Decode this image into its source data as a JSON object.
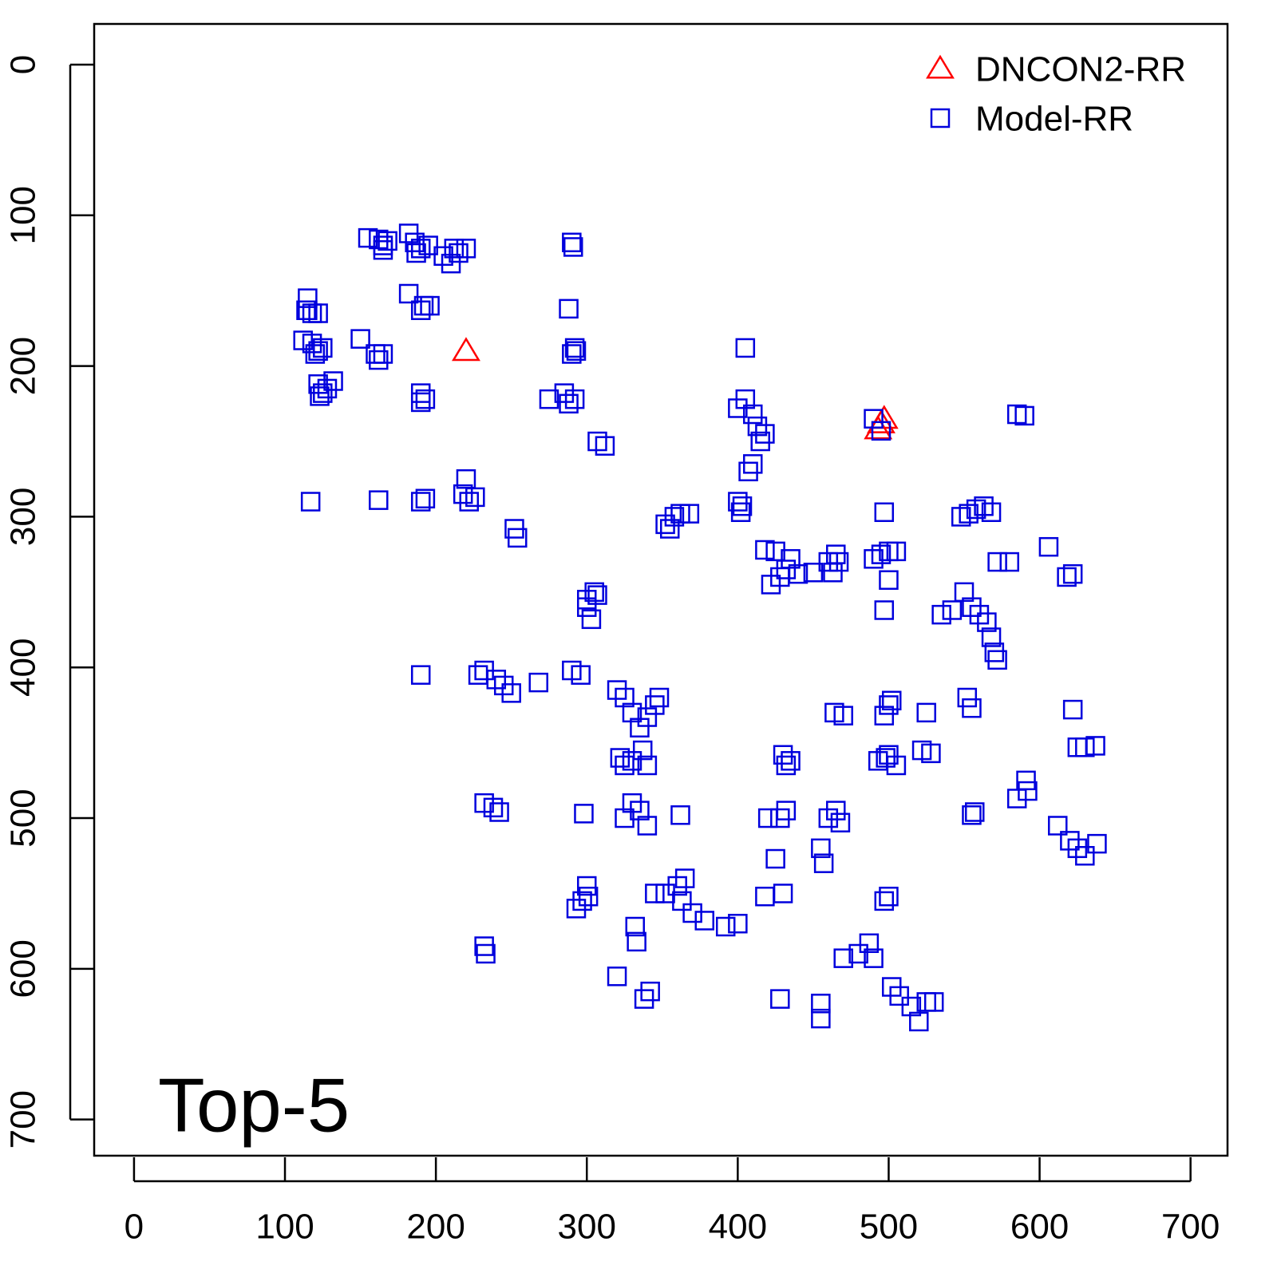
{
  "chart_data": {
    "type": "scatter",
    "title": "Top-5",
    "xlim": [
      -26.4,
      724.5
    ],
    "ylim": [
      724,
      -27
    ],
    "xticks": [
      0,
      100,
      200,
      300,
      400,
      500,
      600,
      700
    ],
    "yticks": [
      0,
      100,
      200,
      300,
      400,
      500,
      600,
      700
    ],
    "legend": "top-right",
    "series": [
      {
        "name": "DNCON2-RR",
        "color": "#ff0000",
        "marker": "triangle",
        "x": [
          220,
          495,
          493,
          497
        ],
        "y": [
          190,
          238,
          242,
          235
        ]
      },
      {
        "name": "Model-RR",
        "color": "#0000dd",
        "marker": "square",
        "x": [
          115,
          115,
          118,
          122,
          114,
          112,
          118,
          122,
          125,
          120,
          122,
          125,
          128,
          132,
          123,
          150,
          160,
          162,
          165,
          155,
          162,
          165,
          168,
          165,
          182,
          186,
          190,
          195,
          187,
          182,
          192,
          196,
          190,
          205,
          210,
          215,
          220,
          212,
          190,
          193,
          190,
          290,
          291,
          288,
          292,
          290,
          293,
          275,
          285,
          288,
          292,
          307,
          312,
          405,
          400,
          405,
          410,
          413,
          418,
          415,
          410,
          407,
          490,
          495,
          585,
          590,
          117,
          162,
          190,
          193,
          220,
          218,
          222,
          226,
          252,
          254,
          352,
          358,
          362,
          368,
          355,
          400,
          403,
          402,
          418,
          425,
          422,
          428,
          432,
          435,
          440,
          450,
          460,
          465,
          463,
          467,
          490,
          495,
          500,
          505,
          500,
          497,
          497,
          548,
          553,
          558,
          563,
          568,
          572,
          580,
          606,
          618,
          622,
          300,
          305,
          300,
          303,
          307,
          535,
          542,
          550,
          555,
          560,
          565,
          568,
          570,
          572,
          190,
          228,
          232,
          240,
          245,
          250,
          268,
          290,
          296,
          320,
          325,
          330,
          335,
          340,
          345,
          348,
          325,
          330,
          337,
          340,
          322,
          464,
          470,
          497,
          502,
          500,
          525,
          552,
          555,
          430,
          432,
          435,
          493,
          498,
          505,
          500,
          522,
          528,
          637,
          622,
          625,
          630,
          591,
          585,
          592,
          232,
          238,
          242,
          298,
          330,
          325,
          335,
          340,
          362,
          420,
          428,
          432,
          425,
          460,
          465,
          468,
          455,
          457,
          555,
          557,
          612,
          620,
          625,
          630,
          638,
          300,
          297,
          293,
          301,
          345,
          352,
          360,
          365,
          363,
          370,
          378,
          392,
          400,
          418,
          430,
          497,
          500,
          232,
          233,
          332,
          333,
          320,
          338,
          342,
          470,
          480,
          487,
          490,
          428,
          455,
          455,
          502,
          507,
          515,
          520,
          525,
          530
        ],
        "y": [
          155,
          163,
          165,
          165,
          163,
          183,
          185,
          190,
          188,
          192,
          212,
          218,
          215,
          210,
          220,
          182,
          192,
          196,
          192,
          115,
          116,
          120,
          117,
          123,
          112,
          118,
          122,
          120,
          125,
          152,
          160,
          160,
          163,
          127,
          132,
          125,
          122,
          122,
          218,
          222,
          224,
          118,
          121,
          162,
          188,
          192,
          190,
          222,
          218,
          225,
          222,
          250,
          253,
          188,
          228,
          222,
          232,
          240,
          245,
          250,
          265,
          270,
          235,
          243,
          232,
          233,
          290,
          289,
          290,
          288,
          275,
          285,
          290,
          287,
          308,
          314,
          305,
          300,
          298,
          298,
          308,
          290,
          293,
          297,
          322,
          323,
          345,
          340,
          335,
          328,
          338,
          337,
          330,
          325,
          337,
          330,
          328,
          325,
          323,
          323,
          342,
          297,
          362,
          300,
          298,
          295,
          293,
          297,
          330,
          330,
          320,
          340,
          338,
          355,
          350,
          360,
          368,
          352,
          365,
          362,
          350,
          360,
          365,
          370,
          380,
          390,
          395,
          405,
          405,
          402,
          408,
          412,
          417,
          410,
          402,
          405,
          415,
          420,
          430,
          440,
          433,
          425,
          420,
          465,
          462,
          455,
          465,
          460,
          430,
          432,
          432,
          422,
          425,
          430,
          420,
          427,
          458,
          465,
          462,
          462,
          460,
          465,
          458,
          455,
          457,
          452,
          428,
          453,
          453,
          475,
          487,
          482,
          490,
          493,
          496,
          497,
          490,
          500,
          495,
          505,
          498,
          500,
          500,
          495,
          527,
          500,
          495,
          503,
          520,
          530,
          498,
          496,
          505,
          515,
          520,
          525,
          517,
          545,
          555,
          560,
          552,
          550,
          550,
          545,
          540,
          555,
          563,
          568,
          572,
          570,
          552,
          550,
          555,
          552,
          585,
          590,
          572,
          582,
          605,
          620,
          615,
          593,
          590,
          583,
          593,
          620,
          623,
          633,
          612,
          618,
          625,
          635,
          622,
          622
        ]
      }
    ]
  }
}
